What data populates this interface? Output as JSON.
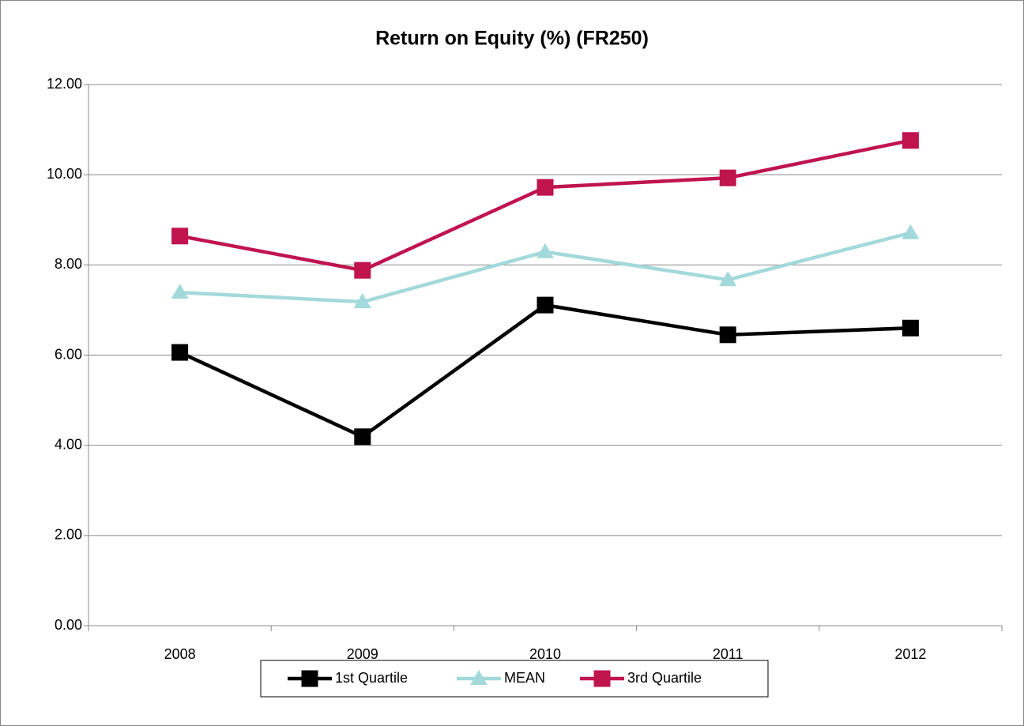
{
  "chart_data": {
    "type": "line",
    "title": "Return on Equity (%) (FR250)",
    "categories": [
      "2008",
      "2009",
      "2010",
      "2011",
      "2012"
    ],
    "series": [
      {
        "name": "1st Quartile",
        "color": "#000000",
        "marker": "square",
        "values": [
          6.06,
          4.19,
          7.11,
          6.45,
          6.6
        ]
      },
      {
        "name": "MEAN",
        "color": "#a3d9da",
        "marker": "triangle",
        "values": [
          7.39,
          7.18,
          8.29,
          7.67,
          8.71
        ]
      },
      {
        "name": "3rd Quartile",
        "color": "#c0144c",
        "marker": "square",
        "values": [
          8.64,
          7.88,
          9.72,
          9.93,
          10.76
        ]
      }
    ],
    "ylim": [
      0,
      12
    ],
    "yticks": [
      {
        "value": 0,
        "label": "0.00"
      },
      {
        "value": 2,
        "label": "2.00"
      },
      {
        "value": 4,
        "label": "4.00"
      },
      {
        "value": 6,
        "label": "6.00"
      },
      {
        "value": 8,
        "label": "8.00"
      },
      {
        "value": 10,
        "label": "10.00"
      },
      {
        "value": 12,
        "label": "12.00"
      }
    ],
    "grid": true,
    "legend": "bottom"
  }
}
